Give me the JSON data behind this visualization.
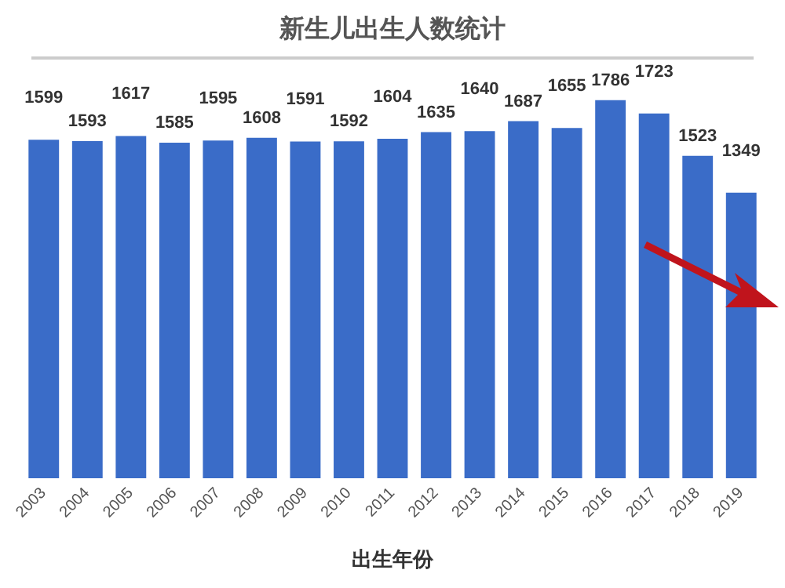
{
  "chart_data": {
    "type": "bar",
    "title": "新生儿出生人数统计",
    "xlabel": "出生年份",
    "categories": [
      "2003",
      "2004",
      "2005",
      "2006",
      "2007",
      "2008",
      "2009",
      "2010",
      "2011",
      "2012",
      "2013",
      "2014",
      "2015",
      "2016",
      "2017",
      "2018",
      "2019"
    ],
    "values": [
      1599,
      1593,
      1617,
      1585,
      1595,
      1608,
      1591,
      1592,
      1604,
      1635,
      1640,
      1687,
      1655,
      1786,
      1723,
      1523,
      1349
    ],
    "color": "#3a6cc8",
    "data_labels": true,
    "grid": false
  }
}
